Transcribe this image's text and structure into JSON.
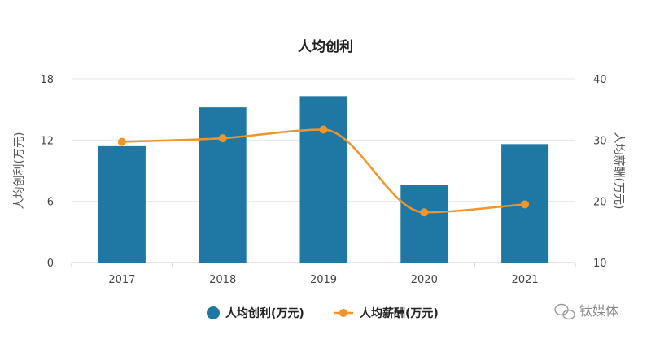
{
  "chart_data": {
    "type": "bar",
    "title": "人均创利",
    "categories": [
      "2017",
      "2018",
      "2019",
      "2020",
      "2021"
    ],
    "series": [
      {
        "name": "人均创利(万元)",
        "type": "bar",
        "axis": "left",
        "color": "#1f78a4",
        "values": [
          11.4,
          15.2,
          16.3,
          7.6,
          11.6
        ]
      },
      {
        "name": "人均薪酬(万元)",
        "type": "line",
        "axis": "right",
        "color": "#f0952a",
        "values": [
          29.7,
          30.3,
          31.7,
          18.2,
          19.5
        ]
      }
    ],
    "y_left": {
      "label": "人均创利(万元)",
      "ylim": [
        0,
        18
      ],
      "ticks": [
        0,
        6,
        12,
        18
      ]
    },
    "y_right": {
      "label": "人均薪酬(万元)",
      "ylim": [
        10,
        40
      ],
      "ticks": [
        10,
        20,
        30,
        40
      ]
    },
    "grid": true,
    "legend": "bottom-center"
  },
  "watermark": {
    "text": "钛媒体"
  }
}
